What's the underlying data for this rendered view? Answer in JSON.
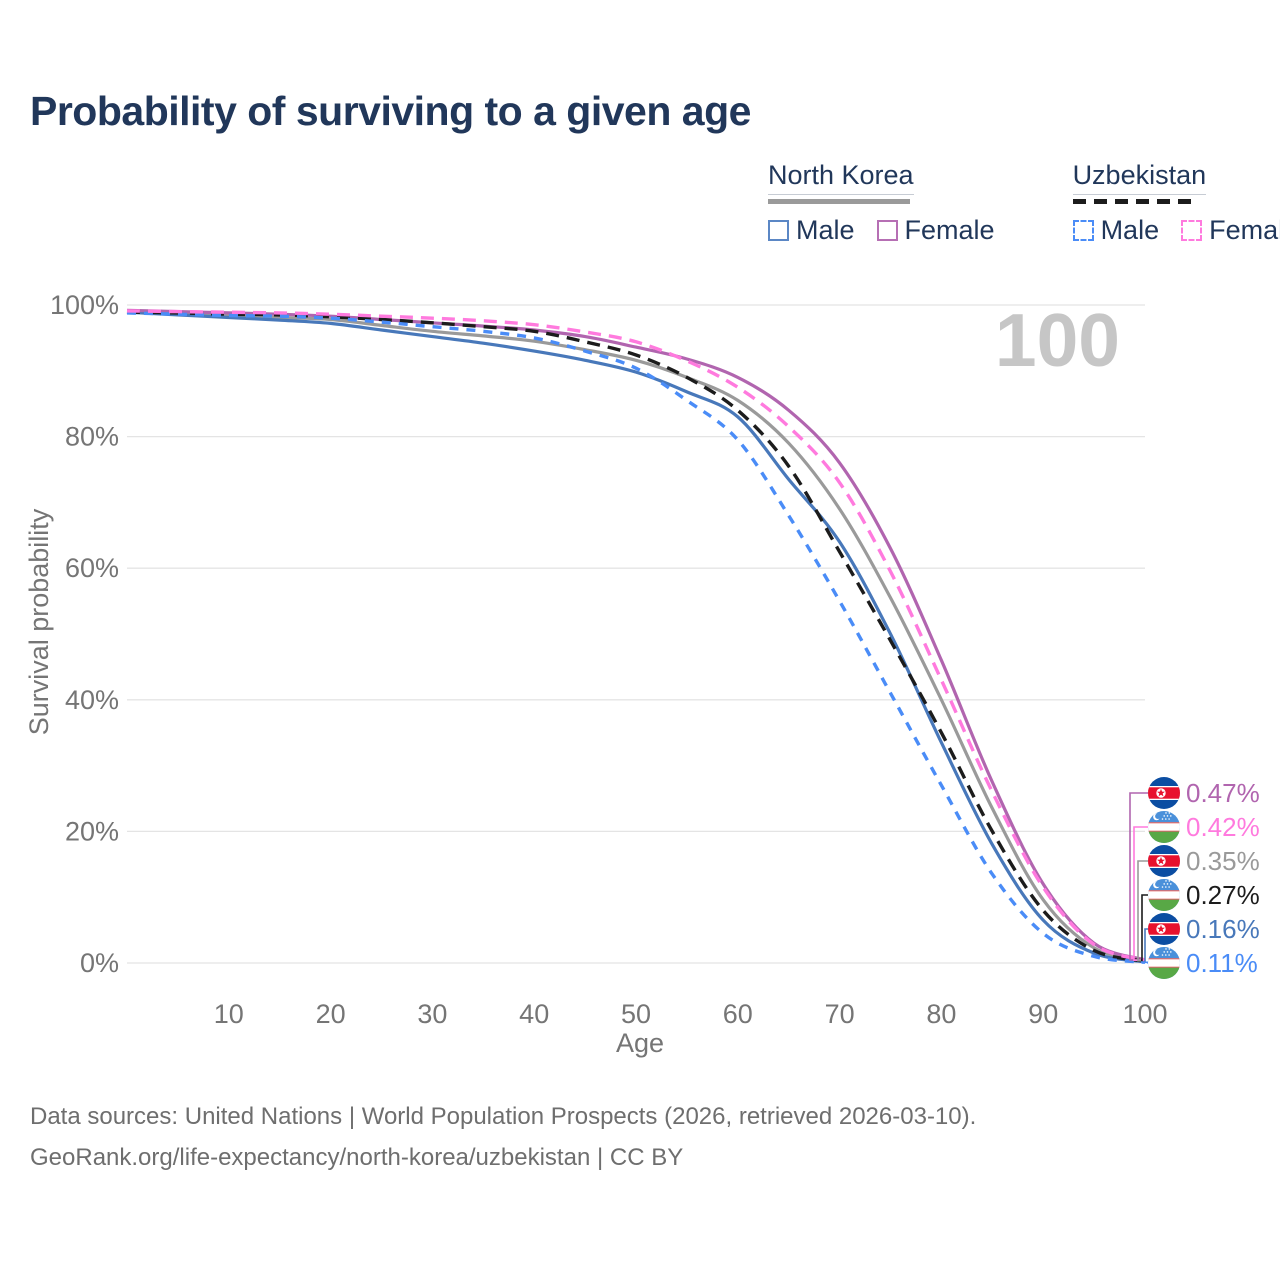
{
  "title": "Probability of surviving to a given age",
  "watermark": "100",
  "legend": {
    "north_korea": {
      "name": "North Korea",
      "male_label": "Male",
      "female_label": "Female",
      "line_color": "#9a9a9a",
      "male_color": "#5b87c5",
      "female_color": "#b66fb4",
      "style": "solid"
    },
    "uzbekistan": {
      "name": "Uzbekistan",
      "male_label": "Male",
      "female_label": "Female",
      "line_color": "#1c1c1c",
      "male_color": "#4a8cf7",
      "female_color": "#ff7ade",
      "style": "dashed"
    }
  },
  "footer": {
    "line1": "Data sources: United Nations | World Population Prospects (2026, retrieved 2026-03-10).",
    "line2": "GeoRank.org/life-expectancy/north-korea/uzbekistan | CC BY"
  },
  "chart_data": {
    "type": "line",
    "title": "Probability of surviving to a given age",
    "xlabel": "Age",
    "ylabel": "Survival probability",
    "xlim": [
      0,
      100
    ],
    "ylim": [
      0,
      100
    ],
    "x_ticks": [
      10,
      20,
      30,
      40,
      50,
      60,
      70,
      80,
      90,
      100
    ],
    "y_ticks": [
      0,
      20,
      40,
      60,
      80,
      100
    ],
    "y_tick_suffix": "%",
    "grid": "horizontal",
    "watermark_age": "100",
    "legend_position": "top-right",
    "ages": [
      0,
      5,
      10,
      15,
      20,
      25,
      30,
      35,
      40,
      45,
      50,
      55,
      60,
      65,
      70,
      75,
      80,
      85,
      90,
      95,
      100
    ],
    "series": [
      {
        "id": "nk_female",
        "name": "North Korea Female",
        "color": "#b165af",
        "dash": "solid",
        "flag": "nk",
        "end_label": "0.47%",
        "values": [
          99.2,
          99.0,
          98.8,
          98.6,
          98.3,
          97.8,
          97.3,
          96.8,
          96.2,
          95.2,
          93.6,
          91.8,
          89.0,
          84.0,
          76.0,
          63.0,
          46.0,
          27.5,
          12.0,
          3.0,
          0.47
        ]
      },
      {
        "id": "uz_female",
        "name": "Uzbekistan Female",
        "color": "#ff7ade",
        "dash": "dashed",
        "flag": "uz",
        "end_label": "0.42%",
        "values": [
          99.1,
          99.0,
          98.9,
          98.8,
          98.6,
          98.3,
          98.0,
          97.6,
          97.0,
          95.9,
          94.4,
          91.5,
          87.5,
          81.5,
          73.0,
          59.5,
          43.0,
          26.0,
          11.5,
          2.8,
          0.42
        ]
      },
      {
        "id": "nk_both",
        "name": "North Korea",
        "color": "#9a9a9a",
        "dash": "solid",
        "flag": "nk",
        "end_label": "0.35%",
        "values": [
          99.0,
          98.7,
          98.4,
          98.1,
          97.8,
          96.9,
          96.0,
          95.3,
          94.5,
          93.2,
          91.6,
          89.0,
          85.5,
          79.0,
          69.0,
          55.5,
          40.0,
          23.5,
          9.6,
          2.3,
          0.35
        ]
      },
      {
        "id": "uz_both",
        "name": "Uzbekistan",
        "color": "#1c1c1c",
        "dash": "dashed",
        "flag": "uz",
        "end_label": "0.27%",
        "values": [
          98.9,
          98.8,
          98.6,
          98.5,
          98.2,
          97.8,
          97.3,
          96.7,
          96.0,
          94.4,
          92.4,
          89.0,
          84.0,
          75.5,
          62.5,
          49.0,
          35.0,
          20.0,
          8.0,
          1.9,
          0.27
        ]
      },
      {
        "id": "nk_male",
        "name": "North Korea Male",
        "color": "#4878ba",
        "dash": "solid",
        "flag": "nk",
        "end_label": "0.16%",
        "values": [
          98.9,
          98.5,
          98.1,
          97.7,
          97.2,
          96.2,
          95.2,
          94.2,
          93.0,
          91.6,
          89.8,
          86.8,
          83.0,
          73.5,
          64.0,
          50.0,
          33.5,
          18.0,
          6.5,
          1.5,
          0.16
        ]
      },
      {
        "id": "uz_male",
        "name": "Uzbekistan Male",
        "color": "#4a8cf7",
        "dash": "dashed",
        "flag": "uz",
        "end_label": "0.11%",
        "values": [
          98.8,
          98.6,
          98.4,
          98.3,
          98.0,
          97.4,
          96.7,
          96.0,
          95.0,
          93.0,
          90.4,
          85.5,
          79.5,
          68.0,
          55.0,
          41.0,
          27.0,
          13.5,
          4.5,
          1.0,
          0.11
        ]
      }
    ],
    "colors": {
      "grid": "#e4e4e4",
      "axis_text": "#757575",
      "watermark": "#c6c6c6",
      "title": "#21375a"
    }
  }
}
